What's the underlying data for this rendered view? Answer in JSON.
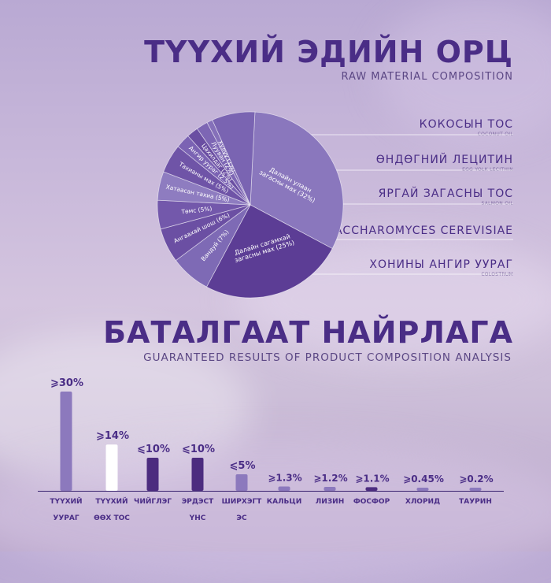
{
  "header1": {
    "title": "ТҮҮХИЙ ЭДИЙН ОРЦ",
    "subtitle": "RAW MATERIAL COMPOSITION"
  },
  "header2": {
    "title": "БАТАЛГААТ НАЙРЛАГА",
    "subtitle": "GUARANTEED RESULTS OF PRODUCT COMPOSITION ANALYSIS"
  },
  "ingredients": [
    {
      "mn": "КОКОСЫН ТОС",
      "en": "COCONUT OIL"
    },
    {
      "mn": "ӨНДӨГНИЙ ЛЕЦИТИН",
      "en": "EGG YOLK LECITHIN"
    },
    {
      "mn": "ЯРГАЙ ЗАГАСНЫ ТОС",
      "en": "SALMON OIL"
    },
    {
      "mn": "SACCHAROMYCES CEREVISIAE",
      "en": ""
    },
    {
      "mn": "ХОНИНЫ АНГИР УУРАГ",
      "en": "COLOSTRUM"
    }
  ],
  "colors": {
    "dark": "#4a2d86",
    "bar_violet": "#8c79bd",
    "bar_dark": "#4c2c7f",
    "bar_white": "#ffffff"
  },
  "chart_data": [
    {
      "type": "pie",
      "title": "",
      "slices": [
        {
          "label": "Далайн улаан загасны мах (32%)",
          "value": 32
        },
        {
          "label": "Далайн сагамхай загасны мах (25%)",
          "value": 25
        },
        {
          "label": "Вандуй (7%)",
          "value": 7
        },
        {
          "label": "Ангаахай шош (6%)",
          "value": 6
        },
        {
          "label": "Төмс (5%)",
          "value": 5
        },
        {
          "label": "Хатаасан тахиа (5%)",
          "value": 5
        },
        {
          "label": "Тахианы мах (5%)",
          "value": 5
        },
        {
          "label": "Ангир уураг (2.5%)",
          "value": 2.5
        },
        {
          "label": "Цахилдаг (2%)",
          "value": 2
        },
        {
          "label": "Лууван (2%)",
          "value": 2
        },
        {
          "label": "Хүлүү (1%)",
          "value": 1
        },
        {
          "label": "",
          "value": 7.5
        }
      ]
    },
    {
      "type": "bar",
      "title": "",
      "categories": [
        {
          "line1": "ТҮҮХИЙ",
          "line2": "УУРАГ"
        },
        {
          "line1": "ТҮҮХИЙ",
          "line2": "ӨӨХ ТОС"
        },
        {
          "line1": "ЧИЙГЛЭГ",
          "line2": ""
        },
        {
          "line1": "ЭРДЭСТ",
          "line2": "ҮНС"
        },
        {
          "line1": "ШИРХЭГТ",
          "line2": "ЭС"
        },
        {
          "line1": "КАЛЬЦИ",
          "line2": ""
        },
        {
          "line1": "ЛИЗИН",
          "line2": ""
        },
        {
          "line1": "ФОСФОР",
          "line2": ""
        },
        {
          "line1": "ХЛОРИД",
          "line2": ""
        },
        {
          "line1": "ТАУРИН",
          "line2": ""
        }
      ],
      "values": [
        30,
        14,
        10,
        10,
        5,
        1.3,
        1.2,
        1.1,
        0.45,
        0.2
      ],
      "labels": [
        "⩾30%",
        "⩾14%",
        "⩽10%",
        "⩽10%",
        "⩽5%",
        "⩾1.3%",
        "⩾1.2%",
        "⩾1.1%",
        "⩾0.45%",
        "⩾0.2%"
      ],
      "bar_colors": [
        "#8c79bd",
        "#ffffff",
        "#4c2c7f",
        "#4c2c7f",
        "#8c79bd",
        "#8c79bd",
        "#8c79bd",
        "#4c2c7f",
        "#8c79bd",
        "#8c79bd"
      ],
      "ylim": [
        0,
        30
      ]
    }
  ]
}
